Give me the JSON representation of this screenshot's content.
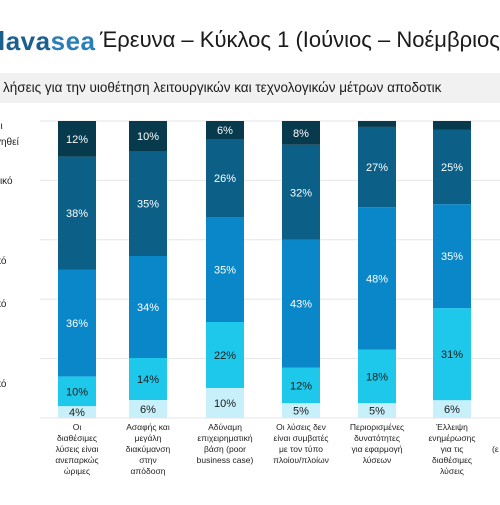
{
  "header": {
    "logo_text_a": "lava",
    "logo_text_b": "sea",
    "title": "Έρευνα – Κύκλος 1 (Ιούνιος – Νοέμβριος"
  },
  "subtitle": "λήσεις για την υιοθέτηση λειτουργικών και τεχνολογικών μέτρων αποδοτικ",
  "legend_fragments": [
    "ει",
    "γηθεί",
    "τικό",
    "κό",
    "κό",
    "κό"
  ],
  "colors": {
    "s1": "#c8f0fa",
    "s2": "#1ec8ea",
    "s3": "#0a87c8",
    "s4": "#0c5f86",
    "s5": "#073a4d"
  },
  "chart_data": {
    "type": "bar",
    "stacked": true,
    "categories": [
      "Οι διαθέσιμες λύσεις είναι ανεπαρκώς ώριμες",
      "Ασαφής και μεγάλη διακύμανση στην απόδοση",
      "Αδύναμη επιχειρηματική βάση (poor business case)",
      "Οι λύσεις δεν είναι συμβατές με τον τύπο πλοίου/πλοίων",
      "Περιορισμένες δυνατότητες για εφαρμογή λύσεων",
      "Έλλειψη ενημέρωσης για τις διαθέσιμες λύσεις"
    ],
    "category_lines": [
      [
        "Οι",
        "διαθέσιμες",
        "λύσεις είναι",
        "ανεπαρκώς",
        "ώριμες"
      ],
      [
        "Ασαφής και",
        "μεγάλη",
        "διακύμανση",
        "στην",
        "απόδοση"
      ],
      [
        "Αδύναμη",
        "επιχειρηματική",
        "βάση (poor",
        "business case)"
      ],
      [
        "Οι λύσεις δεν",
        "είναι συμβατές",
        "με τον τύπο",
        "πλοίου/πλοίων"
      ],
      [
        "Περιορισμένες",
        "δυνατότητες",
        "για εφαρμογή",
        "λύσεων"
      ],
      [
        "Έλλειψη",
        "ενημέρωσης",
        "για τις",
        "διαθέσιμες",
        "λύσεις"
      ]
    ],
    "series": [
      {
        "values": [
          4,
          6,
          10,
          5,
          5,
          6
        ]
      },
      {
        "values": [
          10,
          14,
          22,
          12,
          18,
          31
        ]
      },
      {
        "values": [
          36,
          34,
          35,
          43,
          48,
          35
        ]
      },
      {
        "values": [
          38,
          35,
          26,
          32,
          27,
          25
        ]
      },
      {
        "values": [
          12,
          10,
          6,
          8,
          2,
          3
        ]
      }
    ],
    "data_labels": [
      [
        "4%",
        "10%",
        "36%",
        "38%",
        "12%"
      ],
      [
        "6%",
        "14%",
        "34%",
        "35%",
        "10%"
      ],
      [
        "10%",
        "22%",
        "35%",
        "26%",
        "6%"
      ],
      [
        "5%",
        "12%",
        "43%",
        "32%",
        "8%"
      ],
      [
        "5%",
        "18%",
        "48%",
        "27%",
        ""
      ],
      [
        "6%",
        "31%",
        "35%",
        "25%",
        ""
      ]
    ],
    "ylim": [
      0,
      100
    ],
    "grid": true,
    "extra_label_fragment": "(ε"
  }
}
